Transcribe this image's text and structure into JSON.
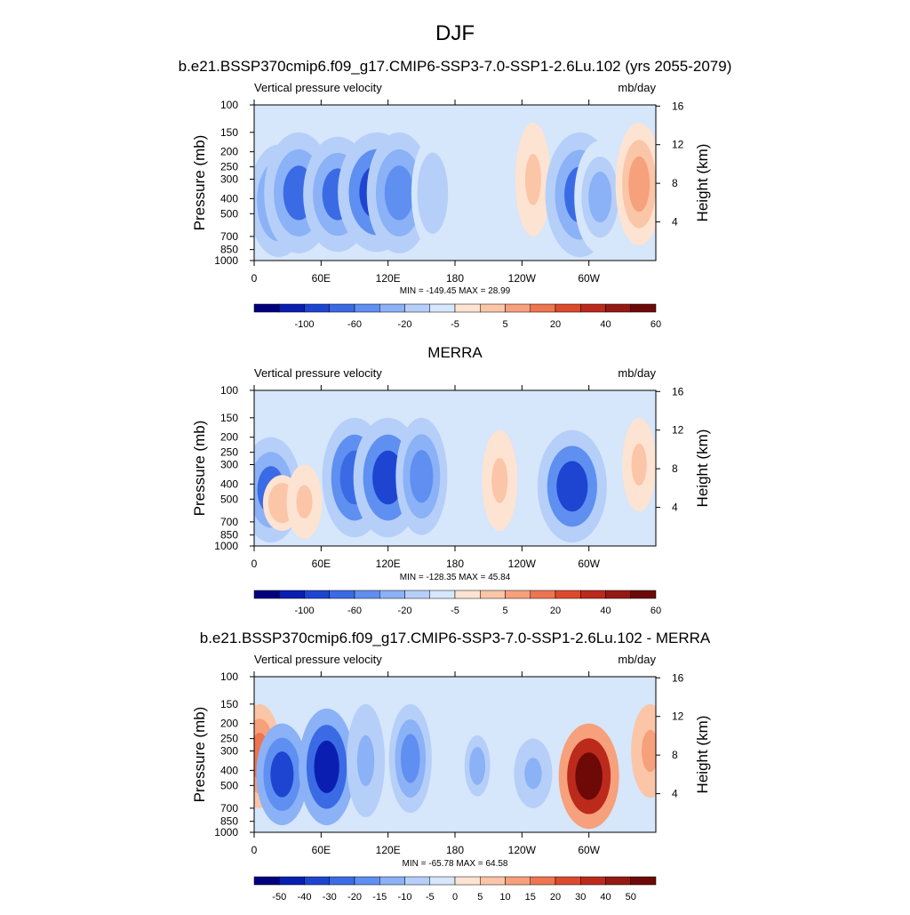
{
  "main_title": "DJF",
  "chart_data": [
    {
      "type": "heatmap",
      "title": "b.e21.BSSP370cmip6.f09_g17.CMIP6-SSP3-7.0-SSP1-2.6Lu.102 (yrs 2055-2079)",
      "left_string": "Vertical pressure velocity",
      "right_string": "mb/day",
      "ylabel": "Pressure (mb)",
      "y2label": "Height (km)",
      "x_ticks": [
        "0",
        "60E",
        "120E",
        "180",
        "120W",
        "60W"
      ],
      "xlim": [
        0,
        360
      ],
      "y_ticks": [
        "100",
        "150",
        "200",
        "250",
        "300",
        "400",
        "500",
        "700",
        "850",
        "1000"
      ],
      "ylim": [
        100,
        1000
      ],
      "y2_ticks": [
        "4",
        "8",
        "12",
        "16"
      ],
      "stats": "MIN = -149.45  MAX =  28.99",
      "min": -149.45,
      "max": 28.99,
      "colorbar_labels": [
        "-100",
        "-60",
        "-20",
        "-5",
        "5",
        "20",
        "40",
        "60"
      ],
      "features": [
        {
          "lon": 22,
          "p_top": 180,
          "p_bot": 950,
          "value": -40
        },
        {
          "lon": 40,
          "p_top": 150,
          "p_bot": 900,
          "value": -50
        },
        {
          "lon": 75,
          "p_top": 160,
          "p_bot": 880,
          "value": -50
        },
        {
          "lon": 110,
          "p_top": 150,
          "p_bot": 880,
          "value": -60
        },
        {
          "lon": 130,
          "p_top": 150,
          "p_bot": 900,
          "value": -45
        },
        {
          "lon": 160,
          "p_top": 160,
          "p_bot": 850,
          "value": -20
        },
        {
          "lon": 250,
          "p_top": 130,
          "p_bot": 700,
          "value": 12
        },
        {
          "lon": 292,
          "p_top": 150,
          "p_bot": 950,
          "value": -50
        },
        {
          "lon": 310,
          "p_top": 170,
          "p_bot": 900,
          "value": -30
        },
        {
          "lon": 345,
          "p_top": 130,
          "p_bot": 800,
          "value": 25
        }
      ],
      "colors": [
        "#00007f",
        "#0a1fb1",
        "#1d45d1",
        "#3a6be5",
        "#5f8ff0",
        "#8bb1f6",
        "#b5cff9",
        "#d6e6fb",
        "#fde3d1",
        "#fbc5a7",
        "#f7a07c",
        "#ee754f",
        "#dc4a2d",
        "#bc2a1b",
        "#951a12",
        "#6d0a08"
      ]
    },
    {
      "type": "heatmap",
      "title": "MERRA",
      "left_string": "Vertical pressure velocity",
      "right_string": "mb/day",
      "ylabel": "Pressure (mb)",
      "y2label": "Height (km)",
      "x_ticks": [
        "0",
        "60E",
        "120E",
        "180",
        "120W",
        "60W"
      ],
      "xlim": [
        0,
        360
      ],
      "y_ticks": [
        "100",
        "150",
        "200",
        "250",
        "300",
        "400",
        "500",
        "700",
        "850",
        "1000"
      ],
      "ylim": [
        100,
        1000
      ],
      "y2_ticks": [
        "4",
        "8",
        "12",
        "16"
      ],
      "stats": "MIN = -128.35  MAX =  45.84",
      "min": -128.35,
      "max": 45.84,
      "colorbar_labels": [
        "-100",
        "-60",
        "-20",
        "-5",
        "5",
        "20",
        "40",
        "60"
      ],
      "features": [
        {
          "lon": 15,
          "p_top": 200,
          "p_bot": 950,
          "value": -40
        },
        {
          "lon": 25,
          "p_top": 350,
          "p_bot": 800,
          "value": 15
        },
        {
          "lon": 45,
          "p_top": 300,
          "p_bot": 900,
          "value": 12
        },
        {
          "lon": 90,
          "p_top": 150,
          "p_bot": 880,
          "value": -45
        },
        {
          "lon": 120,
          "p_top": 150,
          "p_bot": 880,
          "value": -50
        },
        {
          "lon": 150,
          "p_top": 150,
          "p_bot": 850,
          "value": -30
        },
        {
          "lon": 220,
          "p_top": 180,
          "p_bot": 800,
          "value": 12
        },
        {
          "lon": 285,
          "p_top": 180,
          "p_bot": 950,
          "value": -50
        },
        {
          "lon": 345,
          "p_top": 150,
          "p_bot": 600,
          "value": 10
        }
      ],
      "colors": [
        "#00007f",
        "#0a1fb1",
        "#1d45d1",
        "#3a6be5",
        "#5f8ff0",
        "#8bb1f6",
        "#b5cff9",
        "#d6e6fb",
        "#fde3d1",
        "#fbc5a7",
        "#f7a07c",
        "#ee754f",
        "#dc4a2d",
        "#bc2a1b",
        "#951a12",
        "#6d0a08"
      ]
    },
    {
      "type": "heatmap",
      "title": "b.e21.BSSP370cmip6.f09_g17.CMIP6-SSP3-7.0-SSP1-2.6Lu.102 - MERRA",
      "left_string": "Vertical pressure velocity",
      "right_string": "mb/day",
      "ylabel": "Pressure (mb)",
      "y2label": "Height (km)",
      "x_ticks": [
        "0",
        "60E",
        "120E",
        "180",
        "120W",
        "60W"
      ],
      "xlim": [
        0,
        360
      ],
      "y_ticks": [
        "100",
        "150",
        "200",
        "250",
        "300",
        "400",
        "500",
        "700",
        "850",
        "1000"
      ],
      "ylim": [
        100,
        1000
      ],
      "y2_ticks": [
        "4",
        "8",
        "12",
        "16"
      ],
      "stats": "MIN = -65.78  MAX =  64.58",
      "min": -65.78,
      "max": 64.58,
      "colorbar_labels": [
        "-50",
        "-40",
        "-30",
        "-20",
        "-15",
        "-10",
        "-5",
        "0",
        "5",
        "10",
        "15",
        "20",
        "30",
        "40",
        "50"
      ],
      "features": [
        {
          "lon": 5,
          "p_top": 150,
          "p_bot": 700,
          "value": 20
        },
        {
          "lon": 25,
          "p_top": 200,
          "p_bot": 900,
          "value": -30
        },
        {
          "lon": 65,
          "p_top": 160,
          "p_bot": 900,
          "value": -35
        },
        {
          "lon": 100,
          "p_top": 150,
          "p_bot": 800,
          "value": -15
        },
        {
          "lon": 140,
          "p_top": 150,
          "p_bot": 750,
          "value": -20
        },
        {
          "lon": 200,
          "p_top": 200,
          "p_bot": 700,
          "value": -12
        },
        {
          "lon": 250,
          "p_top": 250,
          "p_bot": 700,
          "value": -15
        },
        {
          "lon": 300,
          "p_top": 200,
          "p_bot": 950,
          "value": 40
        },
        {
          "lon": 355,
          "p_top": 150,
          "p_bot": 600,
          "value": 15
        }
      ],
      "colors": [
        "#00007f",
        "#0a1fb1",
        "#1d45d1",
        "#3a6be5",
        "#5f8ff0",
        "#8bb1f6",
        "#b5cff9",
        "#d6e6fb",
        "#fde3d1",
        "#fbc5a7",
        "#f7a07c",
        "#ee754f",
        "#dc4a2d",
        "#bc2a1b",
        "#951a12",
        "#6d0a08"
      ]
    }
  ]
}
